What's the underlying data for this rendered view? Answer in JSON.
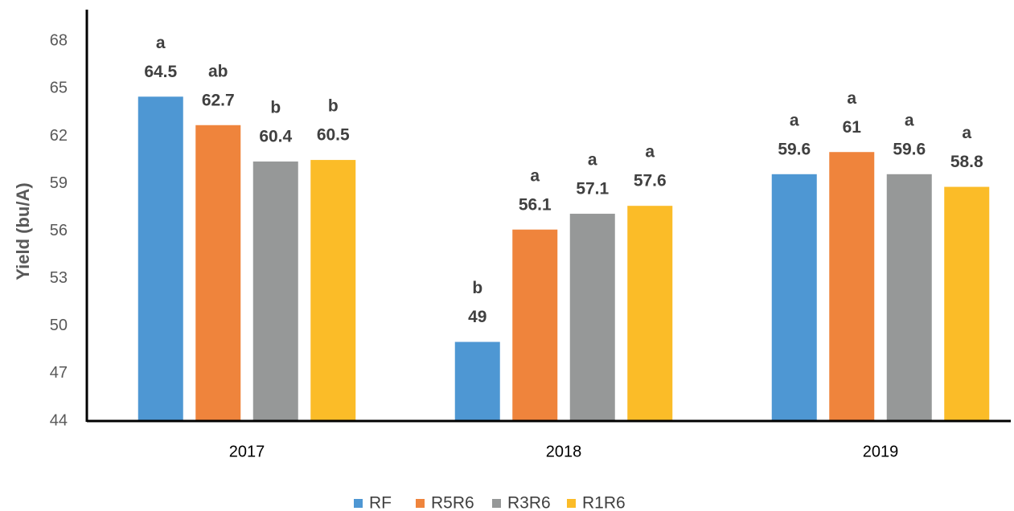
{
  "chart_data": {
    "type": "bar",
    "y_label": "Yield (bu/A)",
    "categories": [
      "2017",
      "2018",
      "2019"
    ],
    "series": [
      {
        "name": "RF",
        "color": "#4e97d3",
        "values": [
          64.5,
          49,
          59.6
        ],
        "annotations": [
          "a",
          "b",
          "a"
        ]
      },
      {
        "name": "R5R6",
        "color": "#ef843c",
        "values": [
          62.7,
          56.1,
          61
        ],
        "annotations": [
          "ab",
          "a",
          "a"
        ]
      },
      {
        "name": "R3R6",
        "color": "#969898",
        "values": [
          60.4,
          57.1,
          59.6
        ],
        "annotations": [
          "b",
          "a",
          "a"
        ]
      },
      {
        "name": "R1R6",
        "color": "#fbbc28",
        "values": [
          60.5,
          57.6,
          58.8
        ],
        "annotations": [
          "b",
          "a",
          "a"
        ]
      }
    ],
    "ylim": [
      44,
      70
    ],
    "yticks": [
      44,
      47,
      50,
      53,
      56,
      59,
      62,
      65,
      68
    ],
    "legend": "bottom"
  }
}
